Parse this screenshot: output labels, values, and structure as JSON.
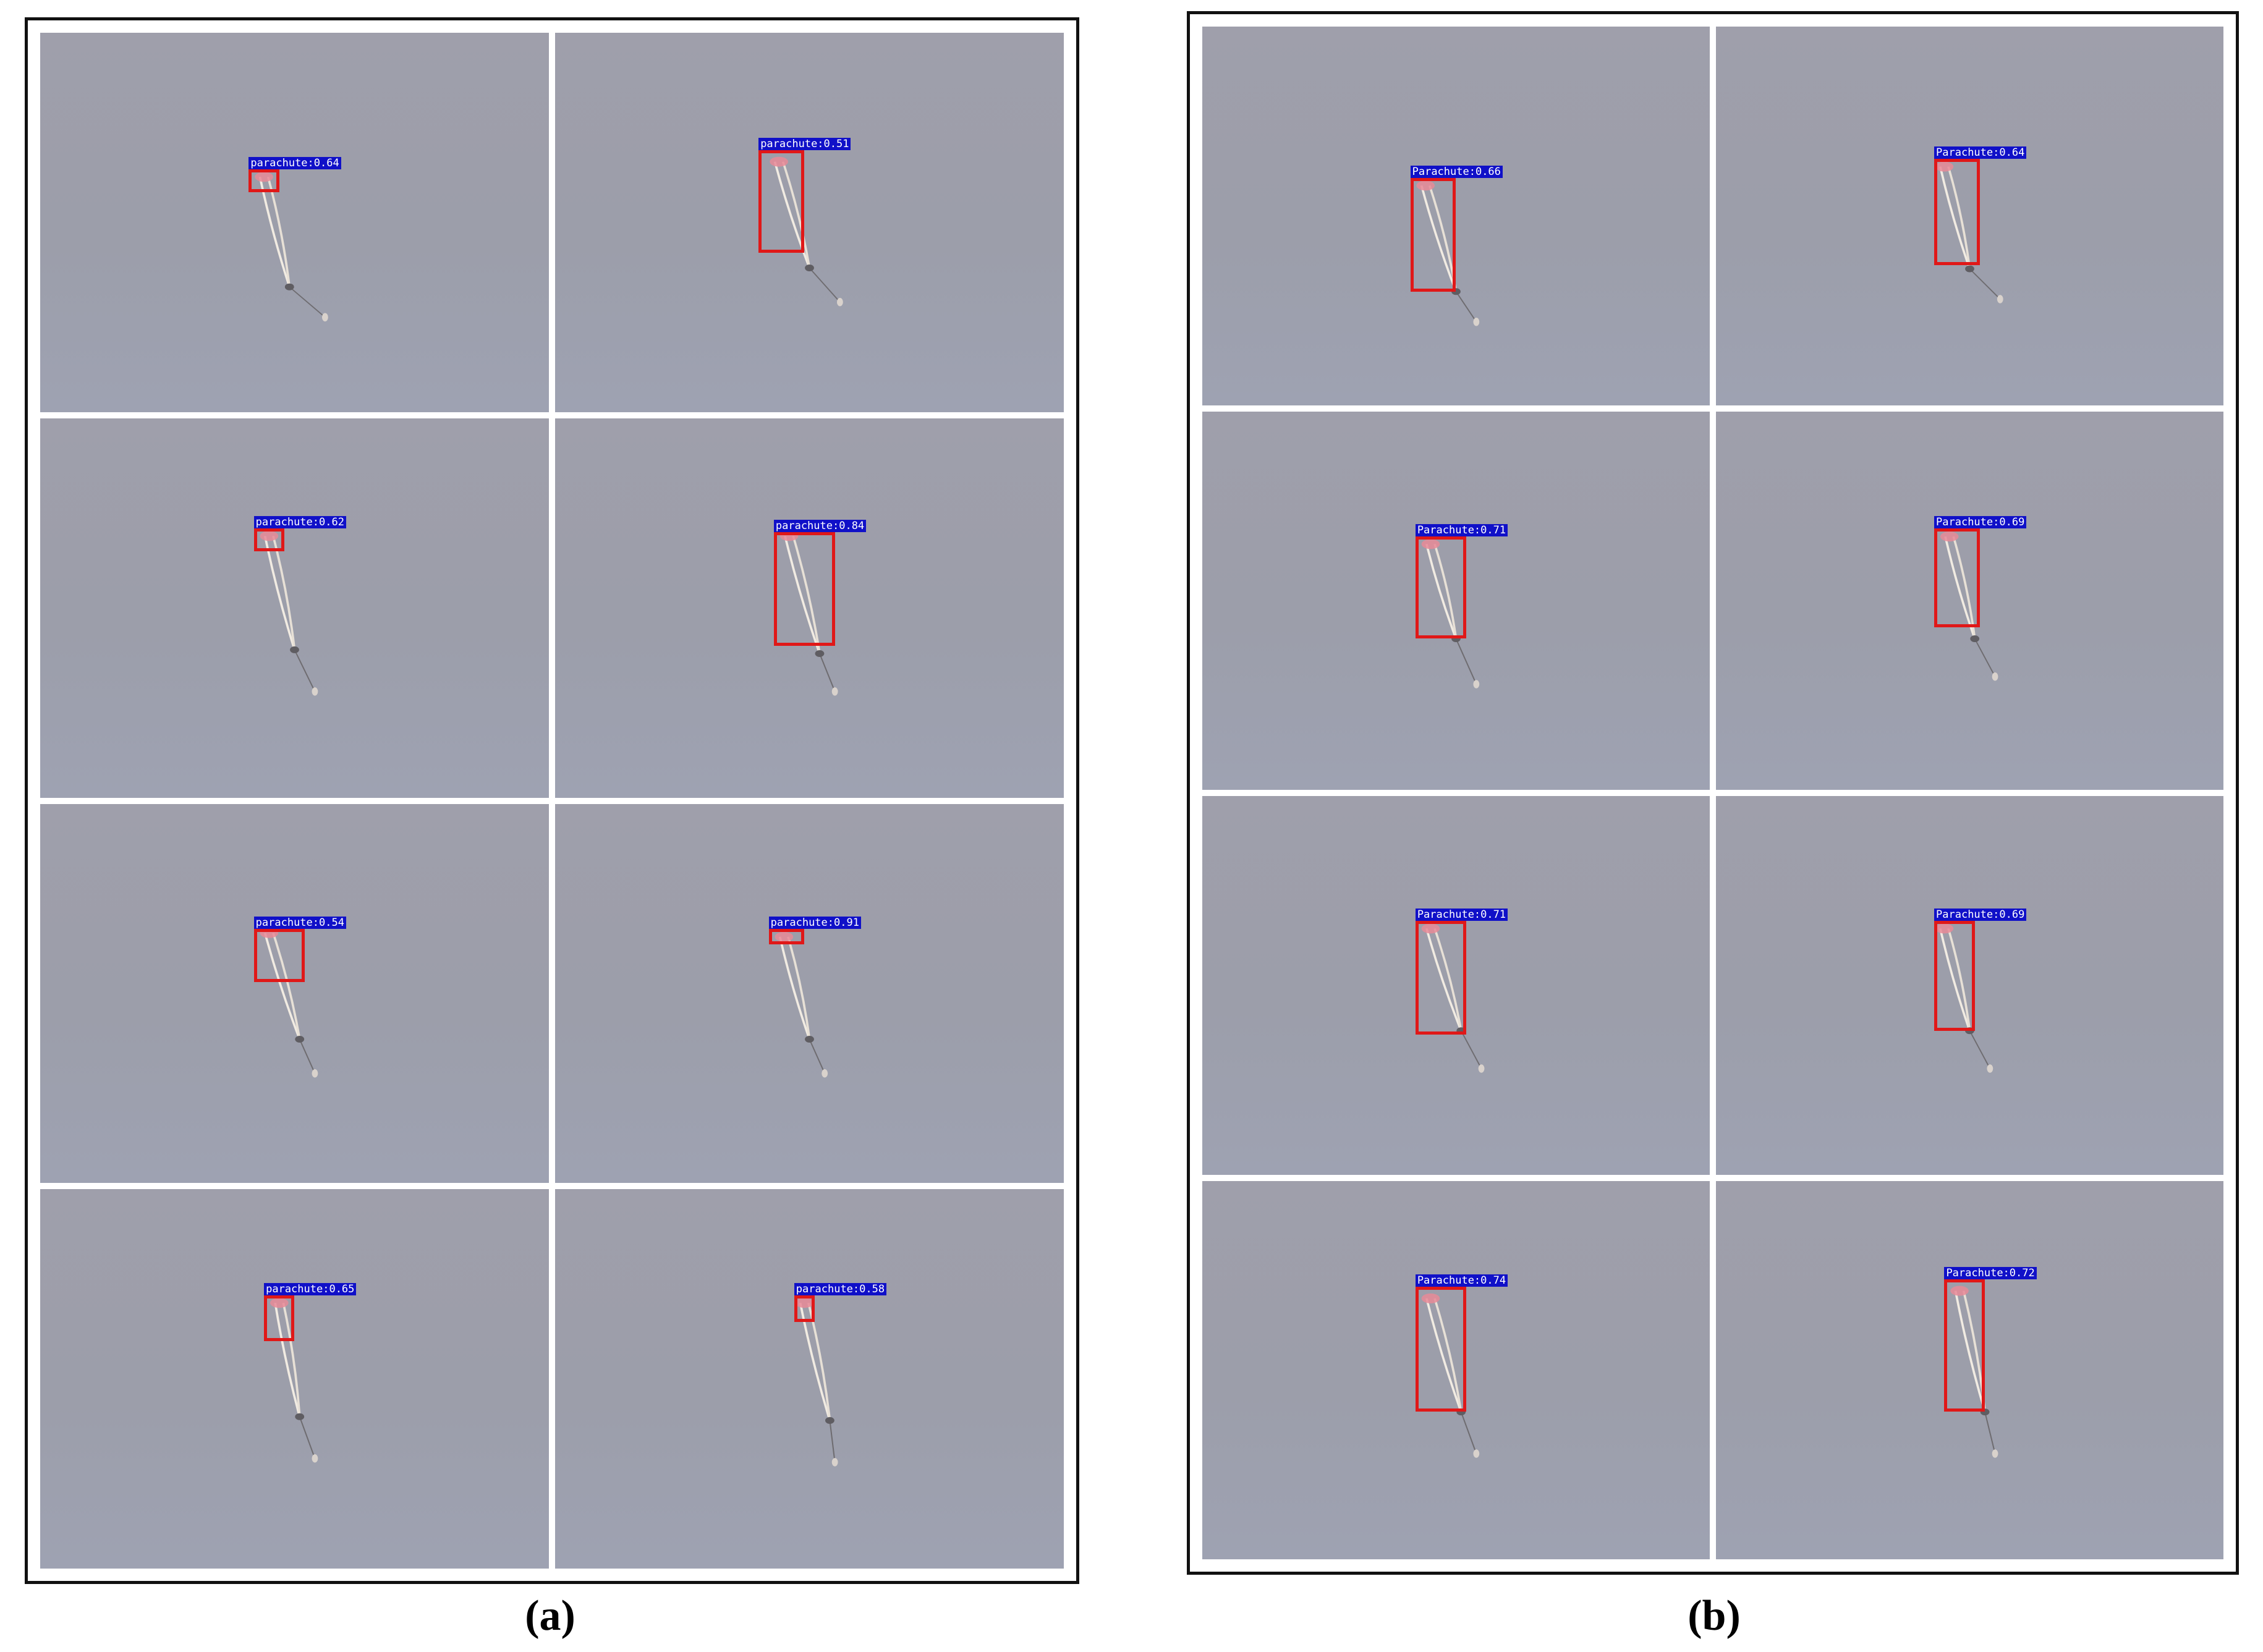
{
  "panels": [
    {
      "id": "a",
      "caption": "(a)",
      "frames": [
        {
          "label": "parachute:0.64"
        },
        {
          "label": "parachute:0.51"
        },
        {
          "label": "parachute:0.62"
        },
        {
          "label": "parachute:0.84"
        },
        {
          "label": "parachute:0.54"
        },
        {
          "label": "parachute:0.91"
        },
        {
          "label": "parachute:0.65"
        },
        {
          "label": "parachute:0.58"
        }
      ]
    },
    {
      "id": "b",
      "caption": "(b)",
      "frames": [
        {
          "label": "Parachute:0.66"
        },
        {
          "label": "Parachute:0.64"
        },
        {
          "label": "Parachute:0.71"
        },
        {
          "label": "Parachute:0.69"
        },
        {
          "label": "Parachute:0.71"
        },
        {
          "label": "Parachute:0.69"
        },
        {
          "label": "Parachute:0.74"
        },
        {
          "label": "Parachute:0.72"
        }
      ]
    }
  ],
  "colors": {
    "sky": "#9e9fac",
    "box": "#e01818",
    "label_bg": "#1010c8",
    "label_text": "#ffffff",
    "canopy": "#e88a98"
  }
}
